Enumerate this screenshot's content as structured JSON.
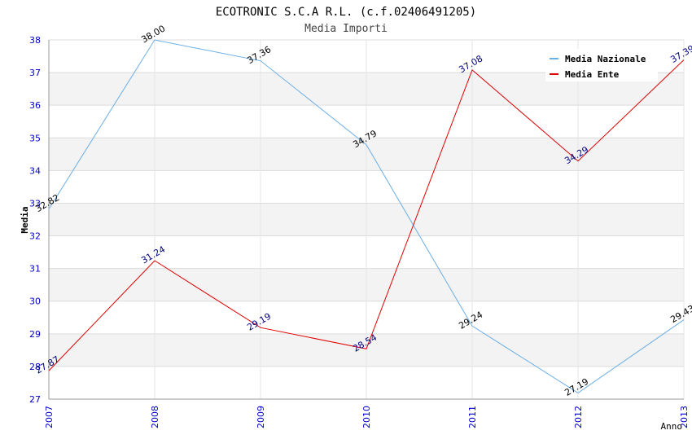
{
  "chart_data": {
    "type": "line",
    "title": "ECOTRONIC S.C.A R.L. (c.f.02406491205)",
    "subtitle": "Media Importi",
    "xlabel": "Anno",
    "ylabel": "Media",
    "x": [
      "2007",
      "2008",
      "2009",
      "2010",
      "2011",
      "2012",
      "2013"
    ],
    "ylim": [
      27,
      38
    ],
    "yticks": [
      "27",
      "28",
      "29",
      "30",
      "31",
      "32",
      "33",
      "34",
      "35",
      "36",
      "37",
      "38"
    ],
    "grid": true,
    "legend_position": "top-right",
    "series": [
      {
        "name": "Media Nazionale",
        "color": "#6aaee6",
        "label_color": "#000000",
        "values": [
          32.82,
          38.0,
          37.36,
          34.79,
          29.24,
          27.19,
          29.43
        ],
        "labels": [
          "32.82",
          "38.00",
          "37.36",
          "34.79",
          "29.24",
          "27.19",
          "29.43"
        ]
      },
      {
        "name": "Media Ente",
        "color": "#e00000",
        "label_color": "#000080",
        "values": [
          27.87,
          31.24,
          29.19,
          28.54,
          37.08,
          34.29,
          37.39
        ],
        "labels": [
          "27.87",
          "31.24",
          "29.19",
          "28.54",
          "37.08",
          "34.29",
          "37.39"
        ]
      }
    ],
    "colors": {
      "tick_labels": "#0000cc",
      "band": "#f3f3f3"
    }
  }
}
